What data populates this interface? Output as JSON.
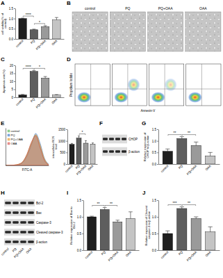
{
  "chart_data": [
    {
      "type": "bar",
      "title": "A",
      "y_label": "cell viability(% of control)",
      "categories": [
        "control",
        "PQ",
        "PQ+OAA",
        "OAA"
      ],
      "values": [
        1.0,
        0.45,
        0.6,
        0.93
      ],
      "errors": [
        0.02,
        0.03,
        0.05,
        0.12
      ],
      "colors": [
        "#1f1f1f",
        "#5e5e5e",
        "#9a9a9a",
        "#c4c4c4"
      ],
      "ylim": [
        0,
        1.5
      ],
      "yticks": [
        {
          "value": 0,
          "label": "0.0"
        },
        0.5,
        {
          "value": 1,
          "label": "1.0"
        },
        1.5
      ],
      "annotations": [
        {
          "text": "****",
          "between": [
            "control",
            "PQ"
          ]
        },
        {
          "text": "*",
          "between": [
            "PQ",
            "PQ+OAA"
          ]
        }
      ]
    },
    {
      "type": "bar",
      "title": "C",
      "y_label": "Apoptosis rate(%)",
      "categories": [
        "control",
        "PQ",
        "PQ+OAA",
        "OAA"
      ],
      "values": [
        1.5,
        16.2,
        12.0,
        1.4
      ],
      "errors": [
        0.3,
        0.6,
        1.0,
        0.3
      ],
      "colors": [
        "#1f1f1f",
        "#5e5e5e",
        "#9a9a9a",
        "#c4c4c4"
      ],
      "ylim": [
        0,
        20
      ],
      "yticks": [
        0,
        5,
        10,
        15,
        20
      ],
      "annotations": [
        {
          "text": "****",
          "between": [
            "control",
            "PQ"
          ]
        },
        {
          "text": "*",
          "between": [
            "PQ",
            "PQ+OAA"
          ]
        }
      ]
    },
    {
      "type": "line",
      "title": "E",
      "x_label": "FITC-A",
      "x": [
        0,
        1,
        2,
        3,
        4,
        5,
        6,
        7,
        8,
        9,
        10
      ],
      "xlim": [
        0,
        10
      ],
      "ylim": [
        0,
        100
      ],
      "tick_labels": false,
      "legend": "top-left",
      "series": [
        {
          "name": "control",
          "color": "#5cb85c",
          "values": [
            0,
            0,
            1,
            3,
            10,
            30,
            60,
            80,
            50,
            15,
            2
          ]
        },
        {
          "name": "PQ",
          "color": "#3a78c9",
          "values": [
            0,
            0,
            0,
            2,
            8,
            25,
            55,
            85,
            60,
            20,
            3
          ]
        },
        {
          "name": "PQ+OAA",
          "color": "#e89a2c",
          "values": [
            0,
            0,
            1,
            3,
            9,
            28,
            58,
            82,
            55,
            18,
            2
          ]
        },
        {
          "name": "OAA",
          "color": "#d9534f",
          "values": [
            0,
            0,
            1,
            3,
            10,
            31,
            62,
            79,
            48,
            14,
            2
          ]
        }
      ]
    },
    {
      "type": "bar",
      "y_label": "intracellular ROS level",
      "categories": [
        "control",
        "PQ",
        "PQ+OAA",
        "OAA"
      ],
      "values": [
        850,
        1120,
        900,
        860
      ],
      "errors": [
        40,
        90,
        110,
        50
      ],
      "colors": [
        "#1f1f1f",
        "#5e5e5e",
        "#9a9a9a",
        "#c4c4c4"
      ],
      "ylim": [
        0,
        1500
      ],
      "yticks": [
        0,
        500,
        1000,
        1500
      ],
      "annotations": [
        {
          "text": "*",
          "between": [
            "PQ",
            "PQ+OAA"
          ]
        }
      ]
    },
    {
      "type": "bar",
      "title": "G",
      "y_label": "Relative expression of CHOP to β-action",
      "categories": [
        "control",
        "PQ",
        "PQ+OAA",
        "OAA"
      ],
      "values": [
        0.55,
        1.1,
        0.8,
        0.35
      ],
      "errors": [
        0.1,
        0.08,
        0.15,
        0.15
      ],
      "colors": [
        "#1f1f1f",
        "#5e5e5e",
        "#9a9a9a",
        "#c4c4c4"
      ],
      "ylim": [
        0,
        1.5
      ],
      "yticks": [
        {
          "value": 0,
          "label": "0.0"
        },
        0.5,
        {
          "value": 1,
          "label": "1.0"
        },
        1.5
      ],
      "annotations": [
        {
          "text": "**",
          "between": [
            "control",
            "PQ"
          ]
        },
        {
          "text": "**",
          "between": [
            "PQ",
            "PQ+OAA"
          ]
        }
      ]
    },
    {
      "type": "bar",
      "title": "I",
      "y_label": "Relative expression of Bax to Bcl-2",
      "categories": [
        "control",
        "PQ",
        "PQ+OAA",
        "OAA"
      ],
      "values": [
        1.0,
        1.22,
        0.85,
        0.95
      ],
      "errors": [
        0.02,
        0.06,
        0.05,
        0.2
      ],
      "colors": [
        "#1f1f1f",
        "#5e5e5e",
        "#9a9a9a",
        "#c4c4c4"
      ],
      "ylim": [
        0,
        1.5
      ],
      "yticks": [
        {
          "value": 0,
          "label": "0.0"
        },
        0.5,
        {
          "value": 1,
          "label": "1.0"
        },
        1.5
      ],
      "annotations": [
        {
          "text": "**",
          "between": [
            "control",
            "PQ"
          ]
        },
        {
          "text": "**",
          "between": [
            "PQ",
            "PQ+OAA"
          ]
        }
      ]
    },
    {
      "type": "bar",
      "title": "J",
      "y_label": "Relative expression of Cleaved caspase-3 to β-action",
      "categories": [
        "control",
        "PQ",
        "PQ+OAA",
        "OAA"
      ],
      "values": [
        0.5,
        1.25,
        0.95,
        0.55
      ],
      "errors": [
        0.08,
        0.05,
        0.05,
        0.15
      ],
      "colors": [
        "#1f1f1f",
        "#5e5e5e",
        "#9a9a9a",
        "#c4c4c4"
      ],
      "ylim": [
        0,
        1.5
      ],
      "yticks": [
        {
          "value": 0,
          "label": "0.0"
        },
        0.5,
        {
          "value": 1,
          "label": "1.0"
        },
        1.5
      ],
      "annotations": [
        {
          "text": "***",
          "between": [
            "control",
            "PQ"
          ]
        },
        {
          "text": "**",
          "between": [
            "PQ",
            "PQ+OAA"
          ]
        }
      ]
    }
  ],
  "images": [
    {
      "panel": "B",
      "type": "micrograph",
      "labels": [
        "control",
        "PQ",
        "PQ+OAA",
        "OAA"
      ]
    },
    {
      "panel": "D",
      "type": "flow_cytometry",
      "y_label": "Propidium Iodide",
      "x_label": "Annexin-V"
    },
    {
      "panel": "F",
      "type": "western_blot",
      "rows": [
        "CHOP",
        "β-action"
      ]
    },
    {
      "panel": "H",
      "type": "western_blot",
      "rows": [
        "Bcl-2",
        "Bax",
        "Caspase-3",
        "Cleaved caspase-3",
        "β-action"
      ],
      "lanes": [
        "control",
        "PQ",
        "PQ+OAA",
        "OAA"
      ]
    }
  ]
}
